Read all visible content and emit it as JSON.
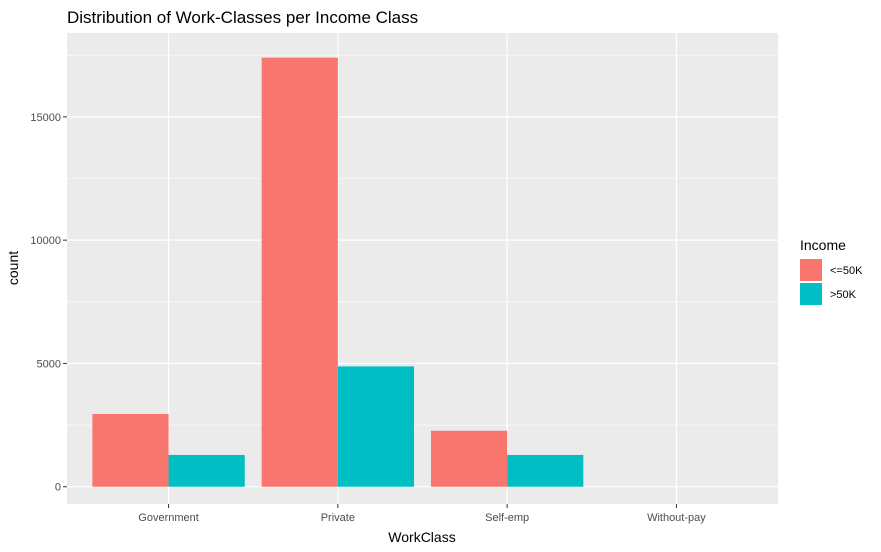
{
  "chart_data": {
    "type": "bar",
    "title": "Distribution of Work-Classes per Income Class",
    "xlabel": "WorkClass",
    "ylabel": "count",
    "categories": [
      "Government",
      "Private",
      "Self-emp",
      "Without-pay"
    ],
    "series": [
      {
        "name": "<=50K",
        "values": [
          2950,
          17400,
          2270,
          0
        ]
      },
      {
        "name": ">50K",
        "values": [
          1290,
          4880,
          1290,
          0
        ]
      }
    ],
    "ylim": [
      -700,
      18400
    ],
    "yticks": [
      0,
      5000,
      10000,
      15000
    ],
    "ytick_labels": [
      "0",
      "5000",
      "10000",
      "15000"
    ],
    "legend": {
      "title": "Income",
      "position": "right"
    },
    "grid": true,
    "colors": {
      "panel": "#ebebeb",
      "grid": "#ffffff",
      "series": [
        "#f8766d",
        "#00bfc4"
      ]
    }
  }
}
